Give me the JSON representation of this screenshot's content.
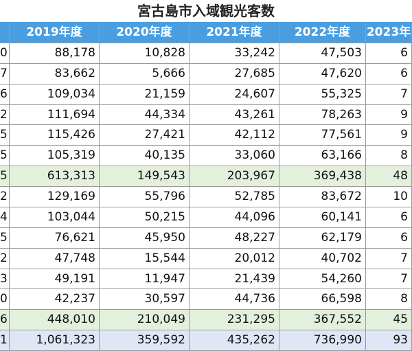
{
  "title": "宮古島市入域観光客数",
  "table": {
    "header": [
      "",
      "2019年度",
      "2020年度",
      "2021年度",
      "2022年度",
      "2023年"
    ],
    "rows": [
      [
        "0",
        "88,178",
        "10,828",
        "33,242",
        "47,503",
        "6"
      ],
      [
        "7",
        "83,662",
        "5,666",
        "27,685",
        "47,620",
        "6"
      ],
      [
        "6",
        "109,034",
        "21,159",
        "24,607",
        "55,325",
        "7"
      ],
      [
        "2",
        "111,694",
        "44,334",
        "43,261",
        "78,263",
        "9"
      ],
      [
        "5",
        "115,426",
        "27,421",
        "42,112",
        "77,561",
        "9"
      ],
      [
        "5",
        "105,319",
        "40,135",
        "33,060",
        "63,166",
        "8"
      ],
      [
        "5",
        "613,313",
        "149,543",
        "203,967",
        "369,438",
        "48"
      ],
      [
        "2",
        "129,169",
        "55,796",
        "52,785",
        "83,672",
        "10"
      ],
      [
        "4",
        "103,044",
        "50,215",
        "44,096",
        "60,141",
        "6"
      ],
      [
        "5",
        "76,621",
        "45,950",
        "48,227",
        "62,179",
        "6"
      ],
      [
        "2",
        "47,748",
        "15,544",
        "20,012",
        "40,702",
        "7"
      ],
      [
        "3",
        "49,191",
        "11,947",
        "21,439",
        "54,260",
        "7"
      ],
      [
        "0",
        "42,237",
        "30,597",
        "44,736",
        "66,598",
        "8"
      ],
      [
        "6",
        "448,010",
        "210,049",
        "231,295",
        "367,552",
        "45"
      ],
      [
        "1",
        "1,061,323",
        "359,592",
        "435,262",
        "736,990",
        "93"
      ]
    ]
  }
}
